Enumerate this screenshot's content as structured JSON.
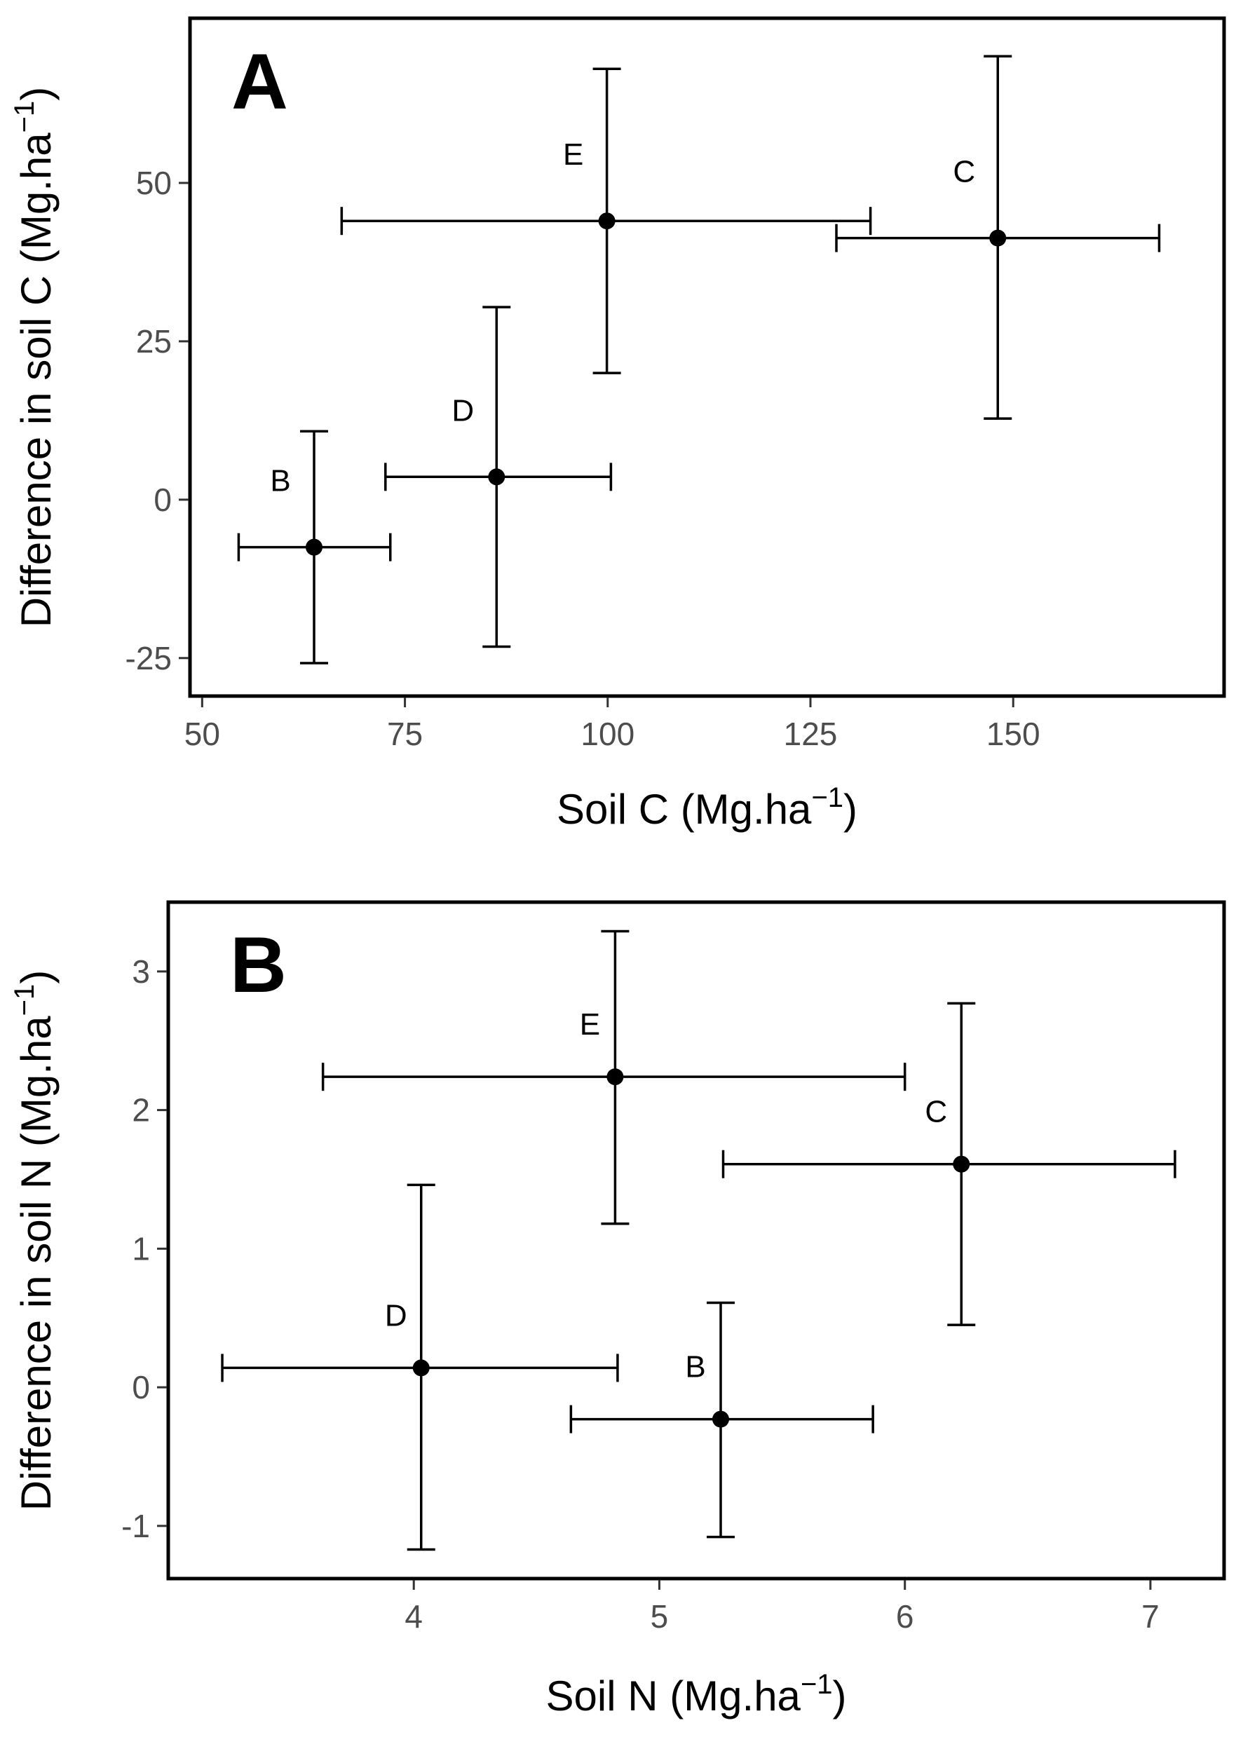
{
  "chart_data": [
    {
      "type": "scatter",
      "panel_label": "A",
      "xlabel": "Soil C (Mg.ha",
      "ylabel": "Difference in soil C (Mg.ha",
      "unit_exponent": "−1",
      "unit_close": ")",
      "xlim": [
        48.5,
        176
      ],
      "ylim": [
        -31,
        76
      ],
      "xticks": [
        50,
        75,
        100,
        125,
        150
      ],
      "yticks": [
        -25,
        0,
        25,
        50
      ],
      "xtick_labels": [
        "50",
        "75",
        "100",
        "125",
        "150"
      ],
      "ytick_labels": [
        "-25",
        "0",
        "25",
        "50"
      ],
      "points": [
        {
          "label": "B",
          "x": 63.8,
          "y": -7.5,
          "x_lo": 54.5,
          "x_hi": 73.2,
          "y_lo": -25.8,
          "y_hi": 10.8
        },
        {
          "label": "D",
          "x": 86.3,
          "y": 3.6,
          "x_lo": 72.6,
          "x_hi": 100.4,
          "y_lo": -23.2,
          "y_hi": 30.4
        },
        {
          "label": "E",
          "x": 99.9,
          "y": 44.0,
          "x_lo": 67.2,
          "x_hi": 132.4,
          "y_lo": 20.0,
          "y_hi": 68.0
        },
        {
          "label": "C",
          "x": 148.1,
          "y": 41.3,
          "x_lo": 128.2,
          "x_hi": 168.0,
          "y_lo": 12.8,
          "y_hi": 70.0
        }
      ],
      "colors": {
        "points": "#000000",
        "frame": "#000000",
        "ticks": "#4d4d4d"
      }
    },
    {
      "type": "scatter",
      "panel_label": "B",
      "xlabel": "Soil N (Mg.ha",
      "ylabel": "Difference in soil N (Mg.ha",
      "unit_exponent": "−1",
      "unit_close": ")",
      "xlim": [
        3.0,
        7.3
      ],
      "ylim": [
        -1.38,
        3.5
      ],
      "xticks": [
        4,
        5,
        6,
        7
      ],
      "yticks": [
        -1,
        0,
        1,
        2,
        3
      ],
      "xtick_labels": [
        "4",
        "5",
        "6",
        "7"
      ],
      "ytick_labels": [
        "-1",
        "0",
        "1",
        "2",
        "3"
      ],
      "points": [
        {
          "label": "D",
          "x": 4.03,
          "y": 0.14,
          "x_lo": 3.22,
          "x_hi": 4.83,
          "y_lo": -1.17,
          "y_hi": 1.46
        },
        {
          "label": "B",
          "x": 5.25,
          "y": -0.23,
          "x_lo": 4.64,
          "x_hi": 5.87,
          "y_lo": -1.08,
          "y_hi": 0.61
        },
        {
          "label": "E",
          "x": 4.82,
          "y": 2.24,
          "x_lo": 3.63,
          "x_hi": 6.0,
          "y_lo": 1.18,
          "y_hi": 3.29
        },
        {
          "label": "C",
          "x": 6.23,
          "y": 1.61,
          "x_lo": 5.26,
          "x_hi": 7.1,
          "y_lo": 0.45,
          "y_hi": 2.77
        }
      ],
      "colors": {
        "points": "#000000",
        "frame": "#000000",
        "ticks": "#4d4d4d"
      }
    }
  ]
}
